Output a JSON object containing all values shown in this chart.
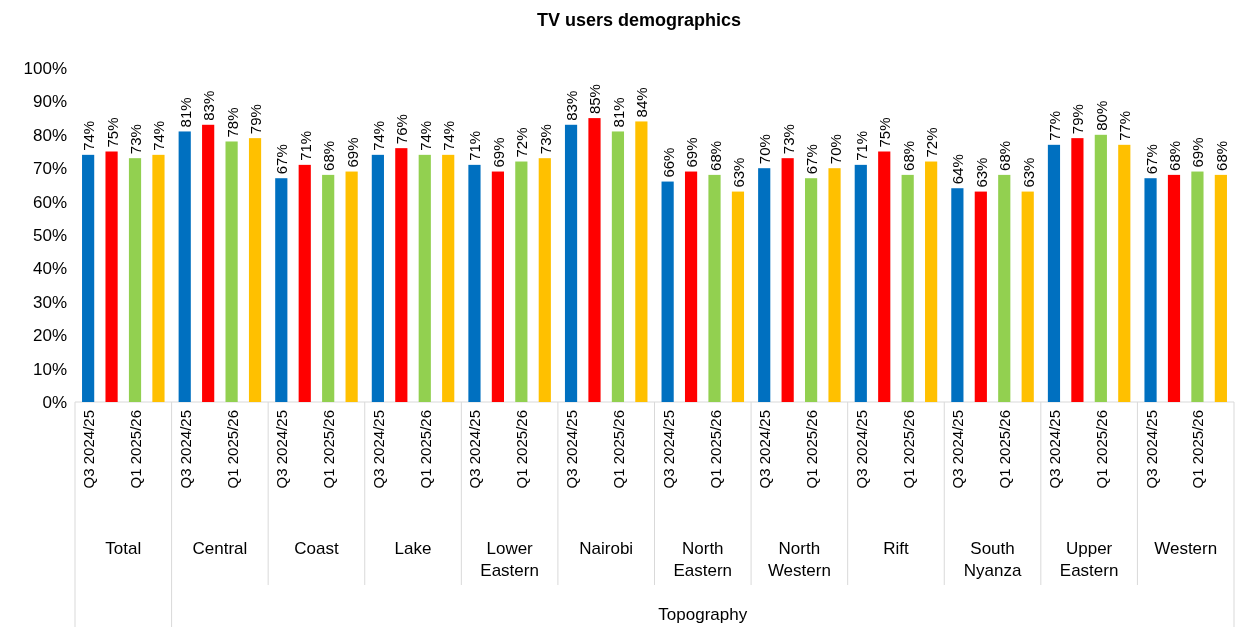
{
  "chart_data": {
    "type": "bar",
    "title": "TV users demographics",
    "categories": [
      "Q3 2024/25",
      null,
      "Q1 2025/26",
      null,
      "Q3 2024/25",
      null,
      "Q1 2025/26",
      null,
      "Q3 2024/25",
      null,
      "Q1 2025/26",
      null,
      "Q3 2024/25",
      null,
      "Q1 2025/26",
      null,
      "Q3 2024/25",
      null,
      "Q1 2025/26",
      null,
      "Q3 2024/25",
      null,
      "Q1 2025/26",
      null,
      "Q3 2024/25",
      null,
      "Q1 2025/26",
      null,
      "Q3 2024/25",
      null,
      "Q1 2025/26",
      null,
      "Q3 2024/25",
      null,
      "Q1 2025/26",
      null,
      "Q3 2024/25",
      null,
      "Q1 2025/26",
      null,
      "Q3 2024/25",
      null,
      "Q1 2025/26",
      null,
      "Q3 2024/25",
      null,
      "Q1 2025/26",
      null
    ],
    "values": [
      74,
      75,
      73,
      74,
      81,
      83,
      78,
      79,
      67,
      71,
      68,
      69,
      74,
      76,
      74,
      74,
      71,
      69,
      72,
      73,
      83,
      85,
      81,
      84,
      66,
      69,
      68,
      63,
      70,
      73,
      67,
      70,
      71,
      75,
      68,
      72,
      64,
      63,
      68,
      63,
      77,
      79,
      80,
      77,
      67,
      68,
      69,
      68
    ],
    "value_labels": [
      "74%",
      "75%",
      "73%",
      "74%",
      "81%",
      "83%",
      "78%",
      "79%",
      "67%",
      "71%",
      "68%",
      "69%",
      "74%",
      "76%",
      "74%",
      "74%",
      "71%",
      "69%",
      "72%",
      "73%",
      "83%",
      "85%",
      "81%",
      "84%",
      "66%",
      "69%",
      "68%",
      "63%",
      "70%",
      "73%",
      "67%",
      "70%",
      "71%",
      "75%",
      "68%",
      "72%",
      "64%",
      "63%",
      "68%",
      "63%",
      "77%",
      "79%",
      "80%",
      "77%",
      "67%",
      "68%",
      "69%",
      "68%"
    ],
    "colors": [
      "#0070c0",
      "#ff0000",
      "#92d050",
      "#ffc000",
      "#0070c0",
      "#ff0000",
      "#92d050",
      "#ffc000",
      "#0070c0",
      "#ff0000",
      "#92d050",
      "#ffc000",
      "#0070c0",
      "#ff0000",
      "#92d050",
      "#ffc000",
      "#0070c0",
      "#ff0000",
      "#92d050",
      "#ffc000",
      "#0070c0",
      "#ff0000",
      "#92d050",
      "#ffc000",
      "#0070c0",
      "#ff0000",
      "#92d050",
      "#ffc000",
      "#0070c0",
      "#ff0000",
      "#92d050",
      "#ffc000",
      "#0070c0",
      "#ff0000",
      "#92d050",
      "#ffc000",
      "#0070c0",
      "#ff0000",
      "#92d050",
      "#ffc000",
      "#0070c0",
      "#ff0000",
      "#92d050",
      "#ffc000",
      "#0070c0",
      "#ff0000",
      "#92d050",
      "#ffc000"
    ],
    "annotations": [
      "Total",
      "Central",
      "Coast",
      "Lake",
      "Lower Eastern",
      "Nairobi",
      "North Eastern",
      "North Western",
      "Rift",
      "South Nyanza",
      "Upper Eastern",
      "Western",
      "Topography"
    ],
    "ylim": [
      0,
      100
    ],
    "yticks": [
      {
        "value": 0,
        "label": "0%"
      },
      {
        "value": 10,
        "label": "10%"
      },
      {
        "value": 20,
        "label": "20%"
      },
      {
        "value": 30,
        "label": "30%"
      },
      {
        "value": 40,
        "label": "40%"
      },
      {
        "value": 50,
        "label": "50%"
      },
      {
        "value": 60,
        "label": "60%"
      },
      {
        "value": 70,
        "label": "70%"
      },
      {
        "value": 80,
        "label": "80%"
      },
      {
        "value": 90,
        "label": "90%"
      },
      {
        "value": 100,
        "label": "100%"
      }
    ]
  }
}
